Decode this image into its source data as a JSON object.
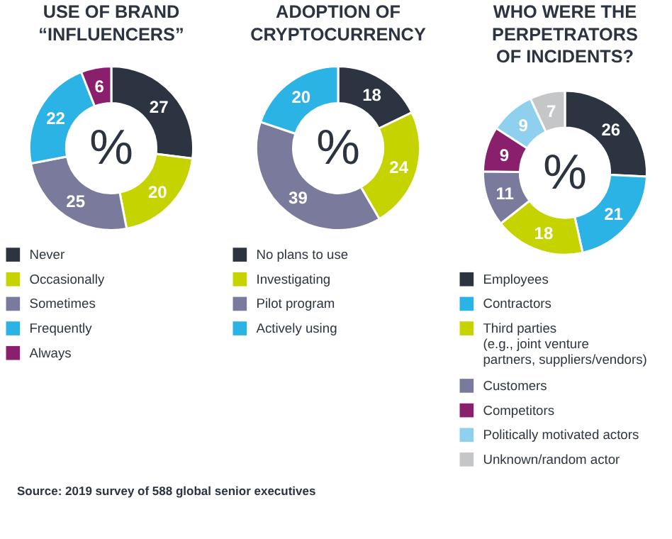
{
  "chart_data": [
    {
      "type": "donut",
      "title": "USE OF BRAND\n“INFLUENCERS”",
      "categories": [
        "Never",
        "Occasionally",
        "Sometimes",
        "Frequently",
        "Always"
      ],
      "values": [
        27,
        20,
        25,
        22,
        6
      ],
      "colors": [
        "#2b3440",
        "#c5d300",
        "#7a7b9c",
        "#2cb3e6",
        "#8a1f6e"
      ],
      "data_labels": true,
      "legend": "bottom",
      "annotations": [
        "%"
      ]
    },
    {
      "type": "donut",
      "title": "ADOPTION OF\nCRYPTOCURRENCY",
      "categories": [
        "No plans to use",
        "Investigating",
        "Pilot program",
        "Actively using"
      ],
      "values": [
        18,
        24,
        39,
        20
      ],
      "colors": [
        "#2b3440",
        "#c5d300",
        "#7a7b9c",
        "#2cb3e6"
      ],
      "data_labels": true,
      "legend": "bottom",
      "annotations": [
        "%"
      ]
    },
    {
      "type": "donut",
      "title": "WHO WERE THE\nPERPETRATORS\nOF INCIDENTS?",
      "categories": [
        "Employees",
        "Contractors",
        "Third parties\n(e.g., joint venture\npartners, suppliers/vendors)",
        "Customers",
        "Competitors",
        "Politically motivated actors",
        "Unknown/random actor"
      ],
      "values": [
        26,
        21,
        18,
        11,
        9,
        9,
        7
      ],
      "colors": [
        "#2b3440",
        "#2cb3e6",
        "#c5d300",
        "#7a7b9c",
        "#8a1f6e",
        "#8fd0ee",
        "#c4c6c8"
      ],
      "data_labels": true,
      "legend": "bottom",
      "annotations": [
        "%",
        "Source: 2019 survey of 588 global senior executives"
      ]
    }
  ]
}
